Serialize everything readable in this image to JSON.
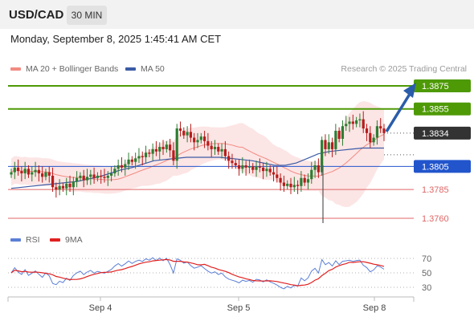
{
  "header": {
    "symbol": "USD/CAD",
    "timeframe": "30 MIN",
    "datetime": "Monday, September 8, 2025 1:45:41 AM CET",
    "credit": "Research © 2025 Trading Central"
  },
  "legend": {
    "bollinger": "MA 20 + Bollinger Bands",
    "ma50": "MA 50",
    "rsi": "RSI",
    "ma9": "9MA"
  },
  "colors": {
    "bollinger": "#f28b82",
    "ma50": "#3b5ba5",
    "rsi": "#5b7fd6",
    "ma9": "#e02020",
    "resistance": "#4e9a06",
    "current": "#333333",
    "pivot": "#2255cc",
    "support": "#e06666",
    "candle_up": "#2e7d32",
    "candle_down": "#b71c1c",
    "band_fill": "#fbdcdc"
  },
  "chart_data": [
    {
      "type": "candlestick",
      "title": "USD/CAD 30 MIN",
      "x_tick_labels": [
        "Sep 4",
        "Sep 5",
        "Sep 8"
      ],
      "ylim": [
        1.3745,
        1.3885
      ],
      "price_levels": [
        {
          "label": "1.3875",
          "value": 1.3875,
          "kind": "resistance"
        },
        {
          "label": "1.3855",
          "value": 1.3855,
          "kind": "resistance"
        },
        {
          "label": "1.3834",
          "value": 1.3834,
          "kind": "current"
        },
        {
          "label": "1.3805",
          "value": 1.3805,
          "kind": "pivot"
        },
        {
          "label": "1.3785",
          "value": 1.3785,
          "kind": "support"
        },
        {
          "label": "1.3760",
          "value": 1.376,
          "kind": "support"
        }
      ],
      "close_series": [
        1.38,
        1.3804,
        1.3801,
        1.3799,
        1.3803,
        1.3798,
        1.38,
        1.3802,
        1.3799,
        1.3796,
        1.38,
        1.3797,
        1.3787,
        1.3785,
        1.3788,
        1.3786,
        1.379,
        1.3787,
        1.3792,
        1.3795,
        1.3797,
        1.3793,
        1.3796,
        1.3798,
        1.3795,
        1.3797,
        1.3796,
        1.3795,
        1.3797,
        1.3799,
        1.3803,
        1.3806,
        1.3804,
        1.3807,
        1.3811,
        1.3809,
        1.3812,
        1.3814,
        1.3813,
        1.3817,
        1.3816,
        1.382,
        1.3818,
        1.3822,
        1.382,
        1.3824,
        1.3819,
        1.381,
        1.3838,
        1.3836,
        1.3832,
        1.3835,
        1.383,
        1.3826,
        1.3828,
        1.3831,
        1.3827,
        1.3823,
        1.382,
        1.3822,
        1.3818,
        1.382,
        1.3814,
        1.381,
        1.3808,
        1.3806,
        1.3803,
        1.3806,
        1.3804,
        1.3805,
        1.3802,
        1.3805,
        1.3804,
        1.3801,
        1.3803,
        1.38,
        1.3798,
        1.3795,
        1.3791,
        1.3788,
        1.379,
        1.3787,
        1.3789,
        1.3788,
        1.3795,
        1.3791,
        1.3794,
        1.3802,
        1.3806,
        1.38,
        1.3828,
        1.382,
        1.3826,
        1.382,
        1.3836,
        1.3829,
        1.384,
        1.3842,
        1.3844,
        1.3842,
        1.3845,
        1.3846,
        1.3838,
        1.3834,
        1.3826,
        1.383,
        1.384,
        1.3838,
        1.3834
      ],
      "ma50_series": [
        1.3786,
        1.3787,
        1.3788,
        1.3789,
        1.379,
        1.3791,
        1.3792,
        1.3794,
        1.3796,
        1.3799,
        1.3802,
        1.3804,
        1.3807,
        1.381,
        1.3811,
        1.3812,
        1.3813,
        1.3813,
        1.3813,
        1.3813,
        1.3812,
        1.3811,
        1.381,
        1.3808,
        1.3806,
        1.3806,
        1.3808,
        1.3812,
        1.3816,
        1.3818,
        1.3819,
        1.382,
        1.3821,
        1.3821,
        1.3821
      ],
      "rsi": {
        "ylim": [
          20,
          80
        ],
        "levels": [
          70,
          50,
          30
        ]
      }
    }
  ]
}
